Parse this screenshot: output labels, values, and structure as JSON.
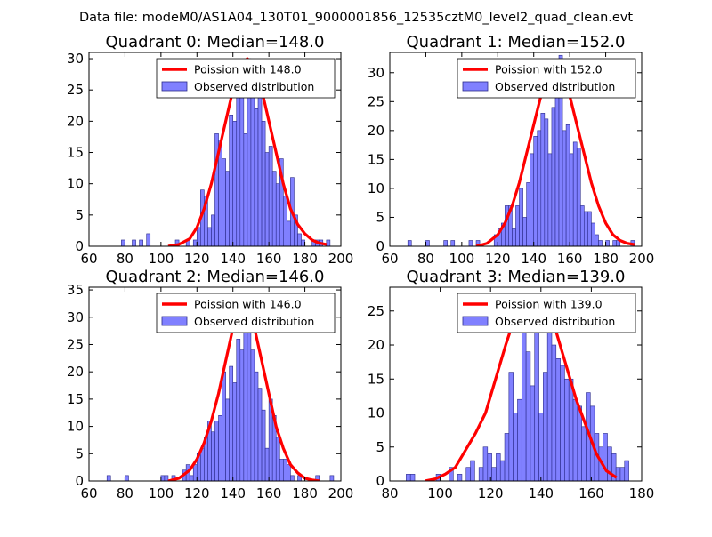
{
  "suptitle": "Data file: modeM0/AS1A04_130T01_9000001856_12535cztM0_level2_quad_clean.evt",
  "colors": {
    "bar_fill": "#8080ff",
    "bar_edge": "#2a2a8a",
    "curve": "#ff0000",
    "axis": "#000000"
  },
  "chart_data": [
    {
      "type": "bar",
      "title": "Quadrant 0: Median=148.0",
      "xlim": [
        60,
        200
      ],
      "ylim": [
        0,
        31
      ],
      "xticks": [
        60,
        80,
        100,
        120,
        140,
        160,
        180,
        200
      ],
      "yticks": [
        0,
        5,
        10,
        15,
        20,
        25,
        30
      ],
      "bin_width": 2,
      "bins": [
        [
          78,
          1
        ],
        [
          84,
          1
        ],
        [
          88,
          1
        ],
        [
          92,
          2
        ],
        [
          108,
          1
        ],
        [
          114,
          1
        ],
        [
          118,
          1
        ],
        [
          120,
          3
        ],
        [
          122,
          9
        ],
        [
          124,
          8
        ],
        [
          126,
          3
        ],
        [
          128,
          5
        ],
        [
          130,
          18
        ],
        [
          132,
          17
        ],
        [
          134,
          14
        ],
        [
          136,
          12
        ],
        [
          138,
          21
        ],
        [
          140,
          20
        ],
        [
          142,
          25
        ],
        [
          144,
          27
        ],
        [
          146,
          18
        ],
        [
          148,
          30
        ],
        [
          150,
          28
        ],
        [
          152,
          22
        ],
        [
          154,
          29
        ],
        [
          156,
          20
        ],
        [
          158,
          15
        ],
        [
          160,
          16
        ],
        [
          162,
          12
        ],
        [
          164,
          10
        ],
        [
          166,
          14
        ],
        [
          168,
          8
        ],
        [
          170,
          4
        ],
        [
          172,
          11
        ],
        [
          174,
          5
        ],
        [
          176,
          2
        ],
        [
          178,
          1
        ],
        [
          184,
          1
        ],
        [
          186,
          1
        ],
        [
          188,
          1
        ],
        [
          192,
          1
        ]
      ],
      "series": [
        {
          "name": "Poission with 148.0",
          "x": [
            104,
            110,
            116,
            120,
            124,
            128,
            132,
            136,
            140,
            144,
            148,
            152,
            156,
            160,
            164,
            168,
            172,
            176,
            180,
            184,
            188,
            192
          ],
          "y": [
            0,
            0.3,
            1.2,
            3,
            6,
            10,
            15,
            20,
            25,
            28.5,
            30,
            28.5,
            25,
            20,
            15,
            10,
            6,
            3.5,
            2,
            1,
            0.5,
            0.3
          ]
        }
      ],
      "legend": {
        "position": "top-right",
        "curve_label": "Poission with 148.0",
        "bar_label": "Observed distribution"
      }
    },
    {
      "type": "bar",
      "title": "Quadrant 1: Median=152.0",
      "xlim": [
        60,
        200
      ],
      "ylim": [
        0,
        33.5
      ],
      "xticks": [
        60,
        80,
        100,
        120,
        140,
        160,
        180,
        200
      ],
      "yticks": [
        0,
        5,
        10,
        15,
        20,
        25,
        30
      ],
      "bin_width": 2,
      "bins": [
        [
          70,
          1
        ],
        [
          80,
          1
        ],
        [
          90,
          1
        ],
        [
          94,
          1
        ],
        [
          104,
          1
        ],
        [
          108,
          1
        ],
        [
          118,
          2
        ],
        [
          120,
          3
        ],
        [
          122,
          4
        ],
        [
          124,
          7
        ],
        [
          126,
          7
        ],
        [
          128,
          3
        ],
        [
          130,
          7
        ],
        [
          132,
          10
        ],
        [
          134,
          5
        ],
        [
          136,
          11
        ],
        [
          138,
          16
        ],
        [
          140,
          19
        ],
        [
          142,
          20
        ],
        [
          144,
          23
        ],
        [
          146,
          22
        ],
        [
          148,
          16
        ],
        [
          150,
          24
        ],
        [
          152,
          29
        ],
        [
          154,
          33
        ],
        [
          156,
          20
        ],
        [
          158,
          21
        ],
        [
          160,
          16
        ],
        [
          162,
          18
        ],
        [
          164,
          17
        ],
        [
          166,
          7
        ],
        [
          168,
          6
        ],
        [
          170,
          6
        ],
        [
          172,
          4
        ],
        [
          174,
          2
        ],
        [
          176,
          1
        ],
        [
          180,
          1
        ],
        [
          184,
          1
        ],
        [
          186,
          1
        ],
        [
          194,
          1
        ]
      ],
      "series": [
        {
          "name": "Poission with 152.0",
          "x": [
            108,
            114,
            120,
            124,
            128,
            132,
            136,
            140,
            144,
            148,
            152,
            156,
            160,
            164,
            168,
            172,
            176,
            180,
            184,
            188,
            192,
            196
          ],
          "y": [
            0,
            0.5,
            2,
            4,
            7,
            11,
            16,
            21,
            26,
            29.5,
            32,
            29.5,
            26,
            21,
            16,
            11,
            7,
            4,
            2,
            1,
            0.5,
            0.3
          ]
        }
      ],
      "legend": {
        "position": "top-right",
        "curve_label": "Poission with 152.0",
        "bar_label": "Observed distribution"
      }
    },
    {
      "type": "bar",
      "title": "Quadrant 2: Median=146.0",
      "xlim": [
        60,
        200
      ],
      "ylim": [
        0,
        35.5
      ],
      "xticks": [
        60,
        80,
        100,
        120,
        140,
        160,
        180,
        200
      ],
      "yticks": [
        0,
        5,
        10,
        15,
        20,
        25,
        30,
        35
      ],
      "bin_width": 2,
      "bins": [
        [
          70,
          1
        ],
        [
          80,
          1
        ],
        [
          100,
          1
        ],
        [
          102,
          1
        ],
        [
          106,
          1
        ],
        [
          112,
          2
        ],
        [
          114,
          3
        ],
        [
          116,
          1
        ],
        [
          118,
          3
        ],
        [
          120,
          5
        ],
        [
          122,
          6
        ],
        [
          124,
          8
        ],
        [
          126,
          11
        ],
        [
          128,
          9
        ],
        [
          130,
          11
        ],
        [
          132,
          12
        ],
        [
          134,
          20
        ],
        [
          136,
          15
        ],
        [
          138,
          21
        ],
        [
          140,
          18
        ],
        [
          142,
          26
        ],
        [
          144,
          24
        ],
        [
          146,
          34
        ],
        [
          148,
          31
        ],
        [
          150,
          24
        ],
        [
          152,
          20
        ],
        [
          154,
          17
        ],
        [
          156,
          13
        ],
        [
          158,
          6
        ],
        [
          160,
          15
        ],
        [
          162,
          12
        ],
        [
          164,
          8
        ],
        [
          166,
          4
        ],
        [
          168,
          4
        ],
        [
          170,
          3
        ],
        [
          172,
          1
        ],
        [
          176,
          1
        ],
        [
          186,
          1
        ],
        [
          194,
          1
        ]
      ],
      "series": [
        {
          "name": "Poission with 146.0",
          "x": [
            104,
            110,
            116,
            120,
            124,
            128,
            132,
            136,
            140,
            144,
            146,
            148,
            152,
            156,
            160,
            164,
            168,
            172,
            176,
            180,
            184,
            188
          ],
          "y": [
            0,
            0.5,
            2,
            4,
            7,
            11,
            16,
            22,
            28,
            33,
            34,
            33,
            28,
            22,
            16,
            10,
            6,
            3,
            1.5,
            0.5,
            0.2,
            0
          ]
        }
      ],
      "legend": {
        "position": "top-right",
        "curve_label": "Poission with 146.0",
        "bar_label": "Observed distribution"
      }
    },
    {
      "type": "bar",
      "title": "Quadrant 3: Median=139.0",
      "xlim": [
        80,
        180
      ],
      "ylim": [
        0,
        28.5
      ],
      "xticks": [
        80,
        100,
        120,
        140,
        160,
        180
      ],
      "yticks": [
        0,
        5,
        10,
        15,
        20,
        25
      ],
      "bin_width": 1.7,
      "bins": [
        [
          86.5,
          1
        ],
        [
          88.2,
          1
        ],
        [
          98.4,
          1
        ],
        [
          103.5,
          2
        ],
        [
          106.9,
          1
        ],
        [
          110.3,
          2
        ],
        [
          112,
          3
        ],
        [
          115.4,
          2
        ],
        [
          117.1,
          5
        ],
        [
          118.8,
          4
        ],
        [
          120.5,
          2
        ],
        [
          122.2,
          4
        ],
        [
          123.9,
          3
        ],
        [
          125.6,
          7
        ],
        [
          127.3,
          16
        ],
        [
          129,
          10
        ],
        [
          130.7,
          12
        ],
        [
          132.4,
          26
        ],
        [
          134.1,
          19
        ],
        [
          135.8,
          14
        ],
        [
          137.5,
          25
        ],
        [
          139.2,
          10
        ],
        [
          140.9,
          16
        ],
        [
          142.6,
          22
        ],
        [
          144.3,
          20
        ],
        [
          146,
          18
        ],
        [
          147.7,
          17
        ],
        [
          149.4,
          15
        ],
        [
          151.1,
          15
        ],
        [
          152.8,
          12
        ],
        [
          154.5,
          11
        ],
        [
          156.2,
          8
        ],
        [
          157.9,
          13
        ],
        [
          159.6,
          11
        ],
        [
          161.3,
          7
        ],
        [
          163,
          5
        ],
        [
          164.7,
          7
        ],
        [
          166.4,
          5
        ],
        [
          168.1,
          4
        ],
        [
          169.8,
          2
        ],
        [
          171.5,
          2
        ],
        [
          173.2,
          3
        ]
      ],
      "series": [
        {
          "name": "Poission with 139.0",
          "x": [
            94,
            98,
            102,
            106,
            110,
            114,
            118,
            122,
            126,
            130,
            134,
            136,
            138,
            142,
            146,
            150,
            154,
            158,
            162,
            166,
            170
          ],
          "y": [
            0,
            0.3,
            1,
            2,
            4.5,
            7,
            10,
            15,
            20,
            24.5,
            27,
            27.2,
            27,
            25.5,
            22,
            17,
            12,
            8,
            4,
            1.5,
            0.5
          ]
        }
      ],
      "legend": {
        "position": "top-right",
        "curve_label": "Poission with 139.0",
        "bar_label": "Observed distribution"
      }
    }
  ]
}
